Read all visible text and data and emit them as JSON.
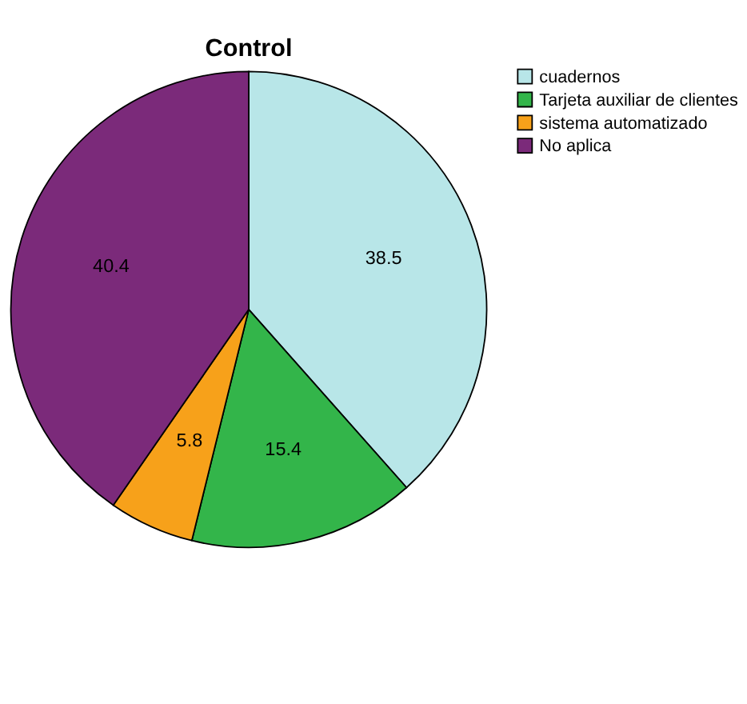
{
  "chart_data": {
    "type": "pie",
    "title": "Control",
    "categories": [
      "cuadernos",
      "Tarjeta auxiliar de clientes",
      "sistema automatizado",
      "No aplica"
    ],
    "values": [
      38.5,
      15.4,
      5.8,
      40.4
    ],
    "colors": [
      "#b8e6e8",
      "#33b54a",
      "#f7a11a",
      "#7b2a7a"
    ],
    "data_labels": true,
    "legend": "top right"
  }
}
